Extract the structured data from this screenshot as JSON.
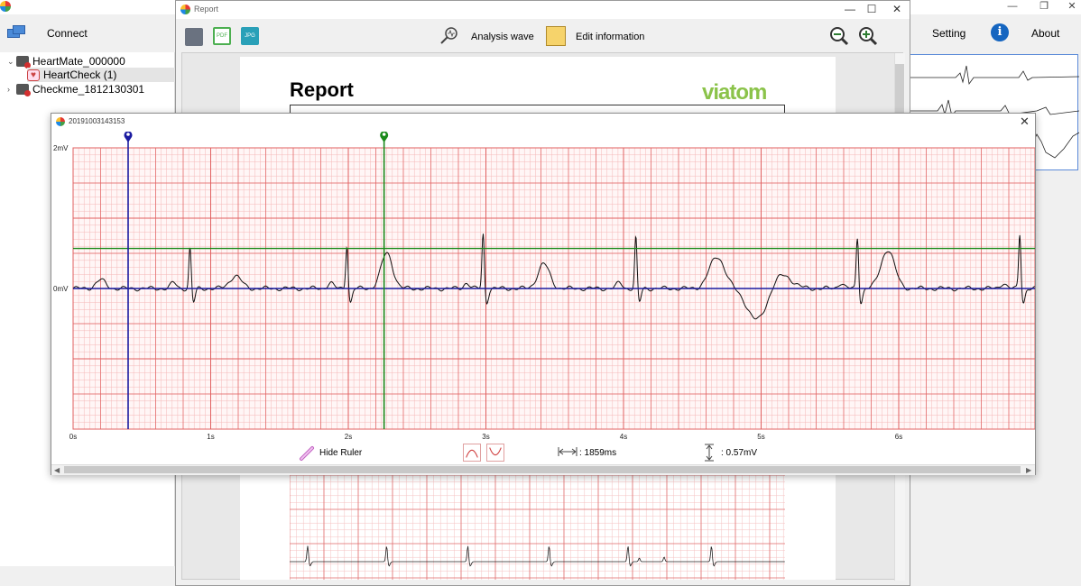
{
  "main": {
    "connect_label": "Connect",
    "setting_label": "Setting",
    "about_label": "About",
    "window_controls": [
      "—",
      "❐",
      "✕"
    ]
  },
  "tree": {
    "items": [
      {
        "label": "HeartMate_000000",
        "arrow": "⌄"
      },
      {
        "label": "HeartCheck  (1)",
        "arrow": ""
      },
      {
        "label": "Checkme_1812130301",
        "arrow": "›"
      }
    ]
  },
  "report": {
    "window_title": "Report",
    "analysis_wave_label": "Analysis wave",
    "edit_info_label": "Edit information",
    "heading": "Report",
    "brand": "viatom",
    "pdf_text": "PDF",
    "jpg_text": "JPG",
    "window_controls": [
      "—",
      "☐",
      "✕"
    ]
  },
  "dialog": {
    "title": "20191003143153",
    "close": "✕",
    "hide_ruler_label": "Hide Ruler",
    "time_measure": ": 1859ms",
    "voltage_measure": ": 0.57mV"
  },
  "chart_data": {
    "type": "line",
    "y_ticks": [
      "2mV",
      "0mV"
    ],
    "x_ticks": [
      "0s",
      "1s",
      "2s",
      "3s",
      "4s",
      "5s",
      "6s"
    ],
    "xlim": [
      0,
      7
    ],
    "ylim": [
      -2,
      2
    ],
    "markers": {
      "blue_time_s": 0.4,
      "green_time_s": 2.26,
      "blue_level_mV": 0.0,
      "green_level_mV": 0.57
    },
    "colors": {
      "grid_major": "#e06060",
      "grid_minor": "#f5b8b8",
      "blue": "#1a1aa0",
      "green": "#1a8a1a",
      "trace": "#111111"
    }
  }
}
